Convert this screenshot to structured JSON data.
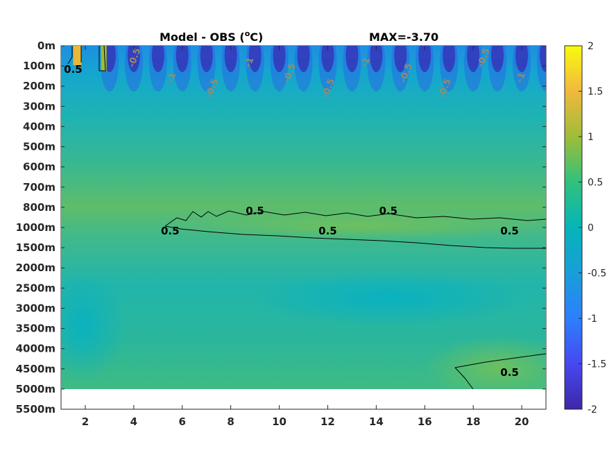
{
  "chart_data": {
    "type": "heatmap",
    "title": "Model - OBS (",
    "title_unit_sup": "o",
    "title_unit_tail": "C)",
    "max_label": "MAX=-3.70",
    "x_ticks": [
      "2",
      "4",
      "6",
      "8",
      "10",
      "12",
      "14",
      "16",
      "18",
      "20"
    ],
    "x_tick_values": [
      2,
      4,
      6,
      8,
      10,
      12,
      14,
      16,
      18,
      20
    ],
    "xlim": [
      1,
      21
    ],
    "y_ticks": [
      "0m",
      "100m",
      "200m",
      "300m",
      "400m",
      "500m",
      "600m",
      "700m",
      "800m",
      "1000m",
      "1500m",
      "2000m",
      "2500m",
      "3000m",
      "3500m",
      "4000m",
      "4500m",
      "5000m",
      "5500m"
    ],
    "data_bottom_label": "5000m",
    "colorbar": {
      "range": [
        -2,
        2
      ],
      "ticks": [
        "2",
        "1.5",
        "1",
        "0.5",
        "0",
        "-0.5",
        "-1",
        "-1.5",
        "-2"
      ],
      "tick_values": [
        2,
        1.5,
        1,
        0.5,
        0,
        -0.5,
        -1,
        -1.5,
        -2
      ],
      "colormap": "parula"
    },
    "contour_level": "0.5",
    "contour_labels": [
      {
        "text": "0.5",
        "x": 5.5,
        "depth": "1000m"
      },
      {
        "text": "0.5",
        "x": 9.0,
        "depth": "800m"
      },
      {
        "text": "0.5",
        "x": 14.5,
        "depth": "800m"
      },
      {
        "text": "0.5",
        "x": 12.0,
        "depth": "1000m"
      },
      {
        "text": "0.5",
        "x": 19.5,
        "depth": "1000m"
      },
      {
        "text": "0.5",
        "x": 19.5,
        "depth": "4500m"
      },
      {
        "text": "0.5",
        "x": 1.5,
        "depth": "100m"
      }
    ],
    "surface_labels": [
      "-0.5",
      "-1",
      "-0.5",
      "-1",
      "-0.5",
      "-0.5",
      "-1",
      "-0.5",
      "-0.5",
      "-0.5",
      "-1"
    ]
  }
}
